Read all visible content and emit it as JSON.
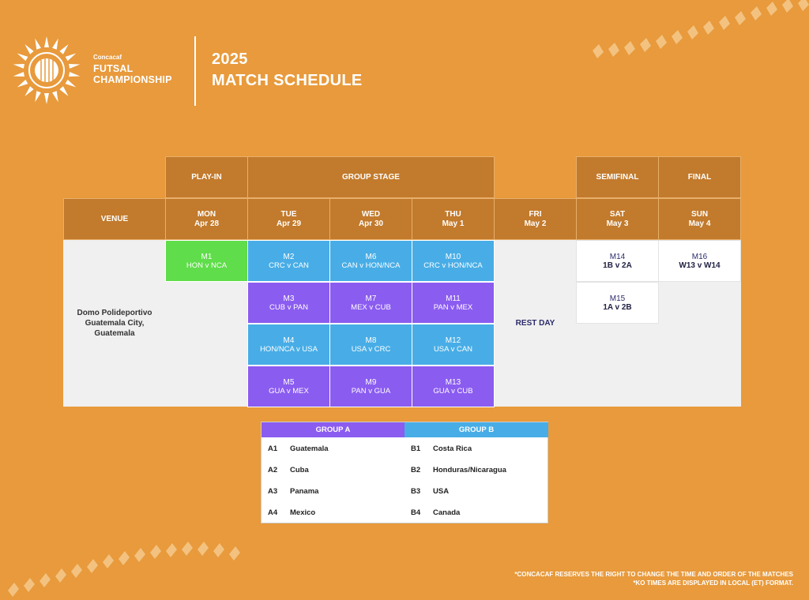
{
  "brand": {
    "org": "Concacaf",
    "line1": "FUTSAL",
    "line2": "CHAMPIONSHIP",
    "logo_icon": "sunburst-futsal-ball-icon"
  },
  "title": {
    "year": "2025",
    "main": "MATCH SCHEDULE"
  },
  "phases": {
    "playin": "PLAY-IN",
    "group": "GROUP STAGE",
    "semi": "SEMIFINAL",
    "final": "FINAL"
  },
  "columns": {
    "venue": "VENUE",
    "days": [
      {
        "day": "MON",
        "date": "Apr 28"
      },
      {
        "day": "TUE",
        "date": "Apr 29"
      },
      {
        "day": "WED",
        "date": "Apr 30"
      },
      {
        "day": "THU",
        "date": "May 1"
      },
      {
        "day": "FRI",
        "date": "May 2"
      },
      {
        "day": "SAT",
        "date": "May 3"
      },
      {
        "day": "SUN",
        "date": "May 4"
      }
    ]
  },
  "venue": {
    "line1": "Domo Polideportivo",
    "line2": "Guatemala City,",
    "line3": "Guatemala"
  },
  "rest_day": "REST DAY",
  "matches": {
    "m1": {
      "code": "M1",
      "teams": "HON v NCA"
    },
    "m2": {
      "code": "M2",
      "teams": "CRC v CAN"
    },
    "m3": {
      "code": "M3",
      "teams": "CUB v PAN"
    },
    "m4": {
      "code": "M4",
      "teams": "HON/NCA v USA"
    },
    "m5": {
      "code": "M5",
      "teams": "GUA v MEX"
    },
    "m6": {
      "code": "M6",
      "teams": "CAN v HON/NCA"
    },
    "m7": {
      "code": "M7",
      "teams": "MEX v CUB"
    },
    "m8": {
      "code": "M8",
      "teams": "USA v CRC"
    },
    "m9": {
      "code": "M9",
      "teams": "PAN v GUA"
    },
    "m10": {
      "code": "M10",
      "teams": "CRC v HON/NCA"
    },
    "m11": {
      "code": "M11",
      "teams": "PAN v MEX"
    },
    "m12": {
      "code": "M12",
      "teams": "USA v CAN"
    },
    "m13": {
      "code": "M13",
      "teams": "GUA v CUB"
    },
    "m14": {
      "code": "M14",
      "teams": "1B v 2A"
    },
    "m15": {
      "code": "M15",
      "teams": "1A v 2B"
    },
    "m16": {
      "code": "M16",
      "teams": "W13 v W14"
    }
  },
  "groups": {
    "a": {
      "title": "GROUP A",
      "teams": [
        {
          "code": "A1",
          "name": "Guatemala"
        },
        {
          "code": "A2",
          "name": "Cuba"
        },
        {
          "code": "A3",
          "name": "Panama"
        },
        {
          "code": "A4",
          "name": "Mexico"
        }
      ]
    },
    "b": {
      "title": "GROUP B",
      "teams": [
        {
          "code": "B1",
          "name": "Costa Rica"
        },
        {
          "code": "B2",
          "name": "Honduras/Nicaragua"
        },
        {
          "code": "B3",
          "name": "USA"
        },
        {
          "code": "B4",
          "name": "Canada"
        }
      ]
    }
  },
  "footnotes": {
    "line1": "*CONCACAF RESERVES THE RIGHT TO CHANGE THE TIME AND ORDER OF THE MATCHES",
    "line2": "*KO TIMES ARE DISPLAYED IN LOCAL (ET) FORMAT."
  },
  "colors": {
    "background": "#E89A3C",
    "header": "#C27A2C",
    "blue_match": "#48ADE6",
    "purple_match": "#8B5CF0",
    "green_match": "#5FDD4A",
    "group_a": "#8B5CF0",
    "group_b": "#48ADE6"
  }
}
